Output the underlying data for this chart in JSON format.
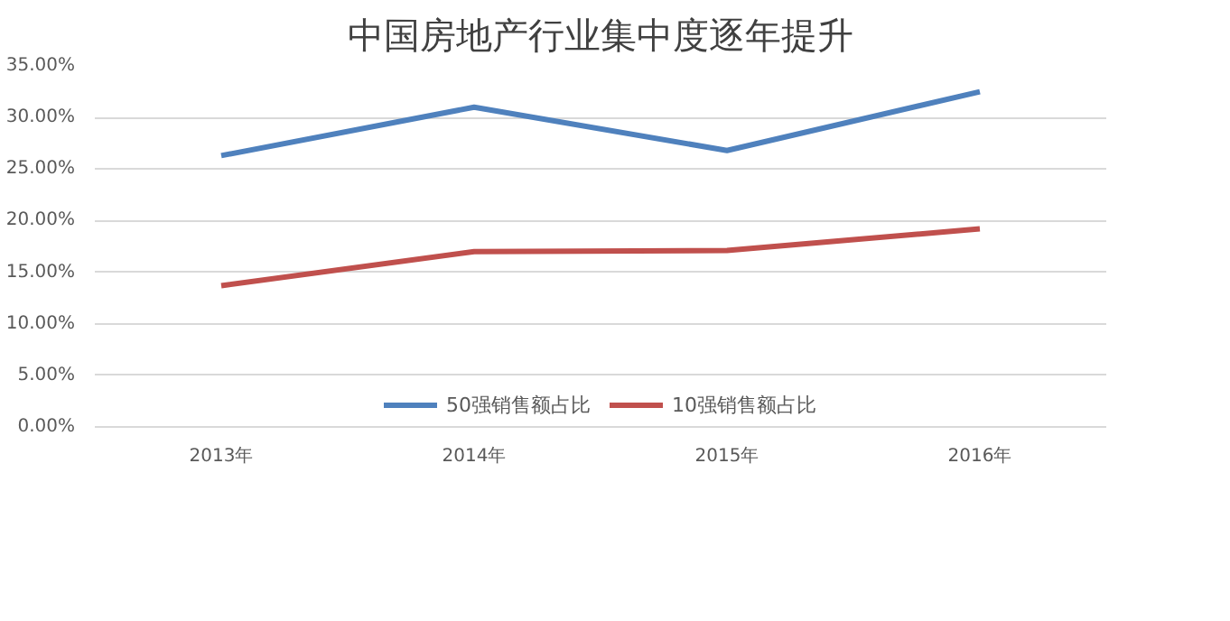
{
  "chart_data": {
    "type": "line",
    "title": "中国房地产行业集中度逐年提升",
    "categories": [
      "2013年",
      "2014年",
      "2015年",
      "2016年"
    ],
    "series": [
      {
        "name": "50强销售额占比",
        "color": "#4f81bd",
        "values": [
          26.3,
          31.0,
          26.8,
          32.5
        ]
      },
      {
        "name": "10强销售额占比",
        "color": "#c0504d",
        "values": [
          13.7,
          17.0,
          17.1,
          19.2
        ]
      }
    ],
    "ylim": [
      0,
      35
    ],
    "yticks": [
      {
        "value": 0,
        "label": "0.00%"
      },
      {
        "value": 5,
        "label": "5.00%"
      },
      {
        "value": 10,
        "label": "10.00%"
      },
      {
        "value": 15,
        "label": "15.00%"
      },
      {
        "value": 20,
        "label": "20.00%"
      },
      {
        "value": 25,
        "label": "25.00%"
      },
      {
        "value": 30,
        "label": "30.00%"
      },
      {
        "value": 35,
        "label": "35.00%"
      }
    ],
    "grid": "y",
    "legend": "bottom",
    "marker": "none",
    "line_style": "solid"
  }
}
